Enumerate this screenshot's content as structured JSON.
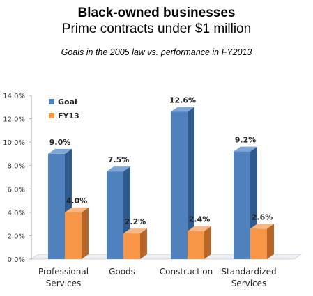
{
  "title": "Black-owned businesses",
  "subtitle": "Prime contracts under $1 million",
  "caption": "Goals in the 2005 law vs. performance in FY2013",
  "colors": {
    "goal": "#4f81bd",
    "goal_side": "#2f5a8e",
    "goal_top": "#7ea6d6",
    "fy13": "#f79646",
    "fy13_side": "#b8652a",
    "fy13_top": "#f8b784",
    "floor": "#eef0f4",
    "grid": "#d9d9d9"
  },
  "chart_data": {
    "type": "bar",
    "categories": [
      [
        "Professional",
        "Services"
      ],
      [
        "Goods"
      ],
      [
        "Construction"
      ],
      [
        "Standardized",
        "Services"
      ]
    ],
    "series": [
      {
        "name": "Goal",
        "values": [
          9.0,
          7.5,
          12.6,
          9.2
        ],
        "labels": [
          "9.0%",
          "7.5%",
          "12.6%",
          "9.2%"
        ]
      },
      {
        "name": "FY13",
        "values": [
          4.0,
          2.2,
          2.4,
          2.6
        ],
        "labels": [
          "4.0%",
          "2.2%",
          "2.4%",
          "2.6%"
        ]
      }
    ],
    "y_ticks": [
      "0.0%",
      "2.0%",
      "4.0%",
      "6.0%",
      "8.0%",
      "10.0%",
      "12.0%",
      "14.0%"
    ],
    "ylim": [
      0,
      14
    ],
    "legend_position": "top-left",
    "grid": false
  }
}
